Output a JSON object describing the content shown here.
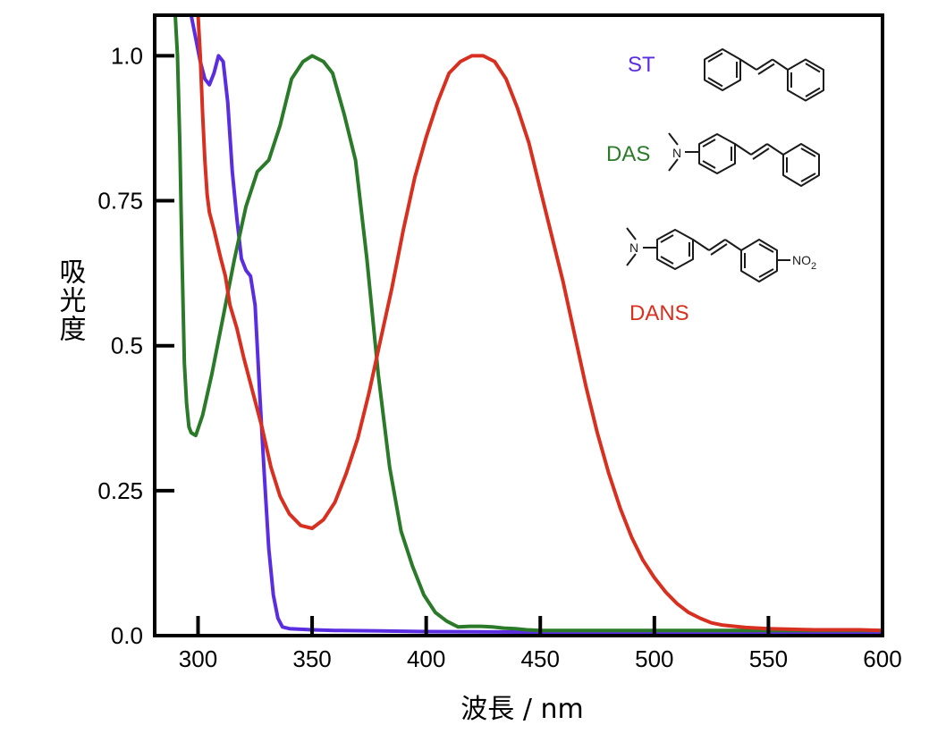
{
  "chart_data": {
    "type": "line",
    "xlabel": "波長 / nm",
    "ylabel": "吸光度",
    "xlim": [
      281,
      600
    ],
    "ylim": [
      0,
      1.07
    ],
    "xticks": [
      300,
      350,
      400,
      450,
      500,
      550,
      600
    ],
    "xtick_labels": [
      "300",
      "350",
      "400",
      "450",
      "500",
      "550",
      "600"
    ],
    "yticks": [
      0,
      0.25,
      0.5,
      0.75,
      1.0
    ],
    "ytick_labels": [
      "0.0",
      "0.25",
      "0.5",
      "0.75",
      "1.0"
    ],
    "grid": false,
    "legend_position": "top-right",
    "series": [
      {
        "name": "ST",
        "color": "#5a2ee0",
        "points": [
          [
            295,
            1.08
          ],
          [
            297,
            1.07
          ],
          [
            299,
            1.03
          ],
          [
            301,
            0.99
          ],
          [
            303,
            0.96
          ],
          [
            305,
            0.95
          ],
          [
            307,
            0.97
          ],
          [
            309,
            1.0
          ],
          [
            311,
            0.99
          ],
          [
            313,
            0.92
          ],
          [
            315,
            0.8
          ],
          [
            317,
            0.72
          ],
          [
            319,
            0.65
          ],
          [
            321,
            0.63
          ],
          [
            323,
            0.62
          ],
          [
            325,
            0.57
          ],
          [
            327,
            0.42
          ],
          [
            329,
            0.28
          ],
          [
            331,
            0.15
          ],
          [
            333,
            0.07
          ],
          [
            335,
            0.03
          ],
          [
            337,
            0.015
          ],
          [
            340,
            0.012
          ],
          [
            345,
            0.011
          ],
          [
            350,
            0.01
          ],
          [
            360,
            0.009
          ],
          [
            380,
            0.008
          ],
          [
            400,
            0.007
          ],
          [
            450,
            0.006
          ],
          [
            500,
            0.006
          ],
          [
            550,
            0.006
          ],
          [
            600,
            0.006
          ]
        ]
      },
      {
        "name": "DAS",
        "color": "#2a7a2a",
        "points": [
          [
            290,
            1.08
          ],
          [
            291,
            1.0
          ],
          [
            292,
            0.85
          ],
          [
            293,
            0.65
          ],
          [
            294,
            0.47
          ],
          [
            295,
            0.4
          ],
          [
            296,
            0.36
          ],
          [
            297,
            0.35
          ],
          [
            299,
            0.345
          ],
          [
            302,
            0.38
          ],
          [
            306,
            0.45
          ],
          [
            311,
            0.55
          ],
          [
            316,
            0.65
          ],
          [
            321,
            0.74
          ],
          [
            326,
            0.8
          ],
          [
            331,
            0.82
          ],
          [
            336,
            0.88
          ],
          [
            341,
            0.96
          ],
          [
            346,
            0.99
          ],
          [
            350,
            1.0
          ],
          [
            355,
            0.99
          ],
          [
            359,
            0.97
          ],
          [
            364,
            0.9
          ],
          [
            369,
            0.82
          ],
          [
            374,
            0.65
          ],
          [
            379,
            0.45
          ],
          [
            384,
            0.29
          ],
          [
            389,
            0.18
          ],
          [
            394,
            0.12
          ],
          [
            399,
            0.07
          ],
          [
            404,
            0.04
          ],
          [
            409,
            0.025
          ],
          [
            414,
            0.015
          ],
          [
            419,
            0.016
          ],
          [
            424,
            0.016
          ],
          [
            429,
            0.015
          ],
          [
            434,
            0.013
          ],
          [
            439,
            0.012
          ],
          [
            444,
            0.01
          ],
          [
            450,
            0.009
          ],
          [
            500,
            0.009
          ],
          [
            550,
            0.009
          ],
          [
            600,
            0.009
          ]
        ]
      },
      {
        "name": "DANS",
        "color": "#d83020",
        "points": [
          [
            300,
            1.08
          ],
          [
            301,
            1.0
          ],
          [
            302,
            0.9
          ],
          [
            303,
            0.82
          ],
          [
            304,
            0.76
          ],
          [
            305,
            0.73
          ],
          [
            307,
            0.7
          ],
          [
            310,
            0.65
          ],
          [
            312,
            0.62
          ],
          [
            314,
            0.57
          ],
          [
            317,
            0.53
          ],
          [
            320,
            0.48
          ],
          [
            324,
            0.42
          ],
          [
            328,
            0.36
          ],
          [
            332,
            0.29
          ],
          [
            336,
            0.24
          ],
          [
            340,
            0.21
          ],
          [
            345,
            0.19
          ],
          [
            350,
            0.185
          ],
          [
            355,
            0.2
          ],
          [
            360,
            0.23
          ],
          [
            365,
            0.28
          ],
          [
            370,
            0.34
          ],
          [
            375,
            0.42
          ],
          [
            380,
            0.51
          ],
          [
            385,
            0.6
          ],
          [
            390,
            0.7
          ],
          [
            395,
            0.79
          ],
          [
            400,
            0.86
          ],
          [
            405,
            0.92
          ],
          [
            410,
            0.97
          ],
          [
            415,
            0.99
          ],
          [
            420,
            1.0
          ],
          [
            425,
            1.0
          ],
          [
            430,
            0.99
          ],
          [
            435,
            0.96
          ],
          [
            440,
            0.91
          ],
          [
            445,
            0.85
          ],
          [
            450,
            0.77
          ],
          [
            455,
            0.69
          ],
          [
            460,
            0.61
          ],
          [
            465,
            0.52
          ],
          [
            470,
            0.43
          ],
          [
            475,
            0.35
          ],
          [
            480,
            0.28
          ],
          [
            485,
            0.22
          ],
          [
            490,
            0.17
          ],
          [
            495,
            0.13
          ],
          [
            500,
            0.1
          ],
          [
            505,
            0.075
          ],
          [
            510,
            0.055
          ],
          [
            515,
            0.04
          ],
          [
            520,
            0.03
          ],
          [
            525,
            0.022
          ],
          [
            530,
            0.018
          ],
          [
            540,
            0.014
          ],
          [
            550,
            0.012
          ],
          [
            560,
            0.011
          ],
          [
            570,
            0.01
          ],
          [
            580,
            0.01
          ],
          [
            590,
            0.01
          ],
          [
            600,
            0.009
          ]
        ]
      }
    ],
    "legend": [
      {
        "label": "ST",
        "color": "#5a2ee0"
      },
      {
        "label": "DAS",
        "color": "#2a7a2a"
      },
      {
        "label": "DANS",
        "color": "#d83020"
      }
    ],
    "annotations": {
      "nitro_group": "NO",
      "nitro_subscript": "2",
      "amine_n": "N"
    }
  }
}
